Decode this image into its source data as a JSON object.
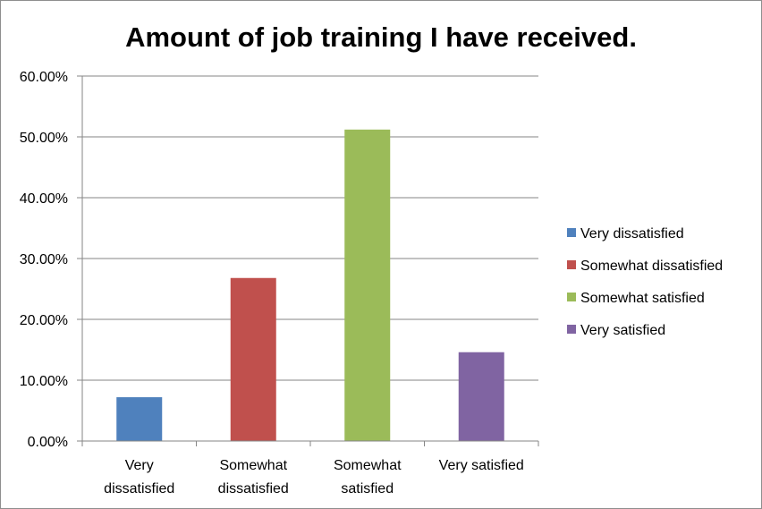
{
  "chart_data": {
    "type": "bar",
    "title": "Amount of job training I have received.",
    "categories": [
      [
        "Very",
        "dissatisfied"
      ],
      [
        "Somewhat",
        "dissatisfied"
      ],
      [
        "Somewhat",
        "satisfied"
      ],
      [
        "Very satisfied"
      ]
    ],
    "values": [
      7.2,
      26.8,
      51.2,
      14.6
    ],
    "colors": [
      "#4f81bd",
      "#c0504d",
      "#9bbb59",
      "#8064a2"
    ],
    "ylim": [
      0,
      60
    ],
    "yticks": [
      0,
      10,
      20,
      30,
      40,
      50,
      60
    ],
    "ytick_labels": [
      "0.00%",
      "10.00%",
      "20.00%",
      "30.00%",
      "40.00%",
      "50.00%",
      "60.00%"
    ],
    "grid": true,
    "legend": {
      "placement": "right",
      "entries": [
        {
          "label": "Very dissatisfied",
          "color": "#4f81bd"
        },
        {
          "label": "Somewhat dissatisfied",
          "color": "#c0504d"
        },
        {
          "label": "Somewhat satisfied",
          "color": "#9bbb59"
        },
        {
          "label": "Very satisfied",
          "color": "#8064a2"
        }
      ]
    },
    "xlabel": "",
    "ylabel": ""
  }
}
